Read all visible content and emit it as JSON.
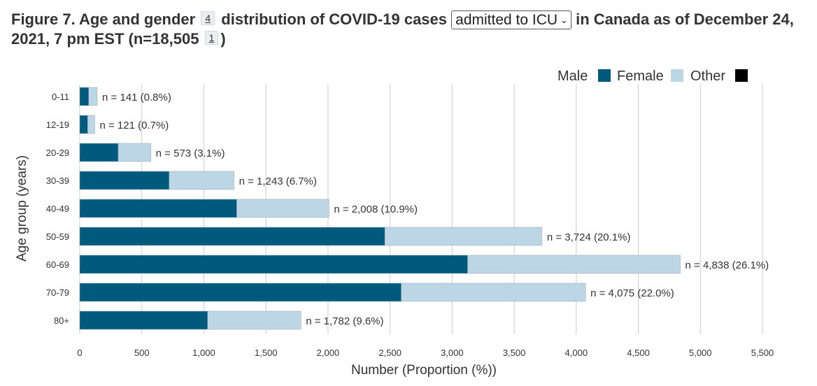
{
  "title": {
    "part1": "Figure 7. Age and gender",
    "footnote_a": "4",
    "part2": "distribution of COVID-19 cases",
    "select_value": "admitted to ICU",
    "part3": "in Canada as of December 24, 2021, 7 pm EST (n=18,505",
    "footnote_b": "1",
    "part4": ")"
  },
  "chart_data": {
    "type": "bar",
    "orientation": "horizontal",
    "stacked": true,
    "categories": [
      "0-11",
      "12-19",
      "20-29",
      "30-39",
      "40-49",
      "50-59",
      "60-69",
      "70-79",
      "80+"
    ],
    "series": [
      {
        "name": "Male",
        "color": "#005a7d",
        "values": [
          72,
          64,
          310,
          720,
          1265,
          2458,
          3125,
          2590,
          1030
        ]
      },
      {
        "name": "Female",
        "color": "#bcd6e6",
        "values": [
          69,
          57,
          263,
          523,
          743,
          1266,
          1713,
          1485,
          752
        ]
      },
      {
        "name": "Other",
        "color": "#000000",
        "values": [
          0,
          0,
          0,
          0,
          0,
          0,
          0,
          0,
          0
        ]
      }
    ],
    "data_labels": [
      "n = 141 (0.8%)",
      "n = 121 (0.7%)",
      "n = 573 (3.1%)",
      "n = 1,243 (6.7%)",
      "n = 2,008 (10.9%)",
      "n = 3,724 (20.1%)",
      "n = 4,838 (26.1%)",
      "n = 4,075 (22.0%)",
      "n = 1,782 (9.6%)"
    ],
    "xlim": [
      0,
      5500
    ],
    "xticks": [
      0,
      500,
      1000,
      1500,
      2000,
      2500,
      3000,
      3500,
      4000,
      4500,
      5000,
      5500
    ],
    "xtick_labels": [
      "0",
      "500",
      "1,000",
      "1,500",
      "2,000",
      "2,500",
      "3,000",
      "3,500",
      "4,000",
      "4,500",
      "5,000",
      "5,500"
    ],
    "xlabel": "Number (Proportion (%))",
    "ylabel": "Age group (years)",
    "grid": "vertical",
    "legend": "top-right"
  }
}
